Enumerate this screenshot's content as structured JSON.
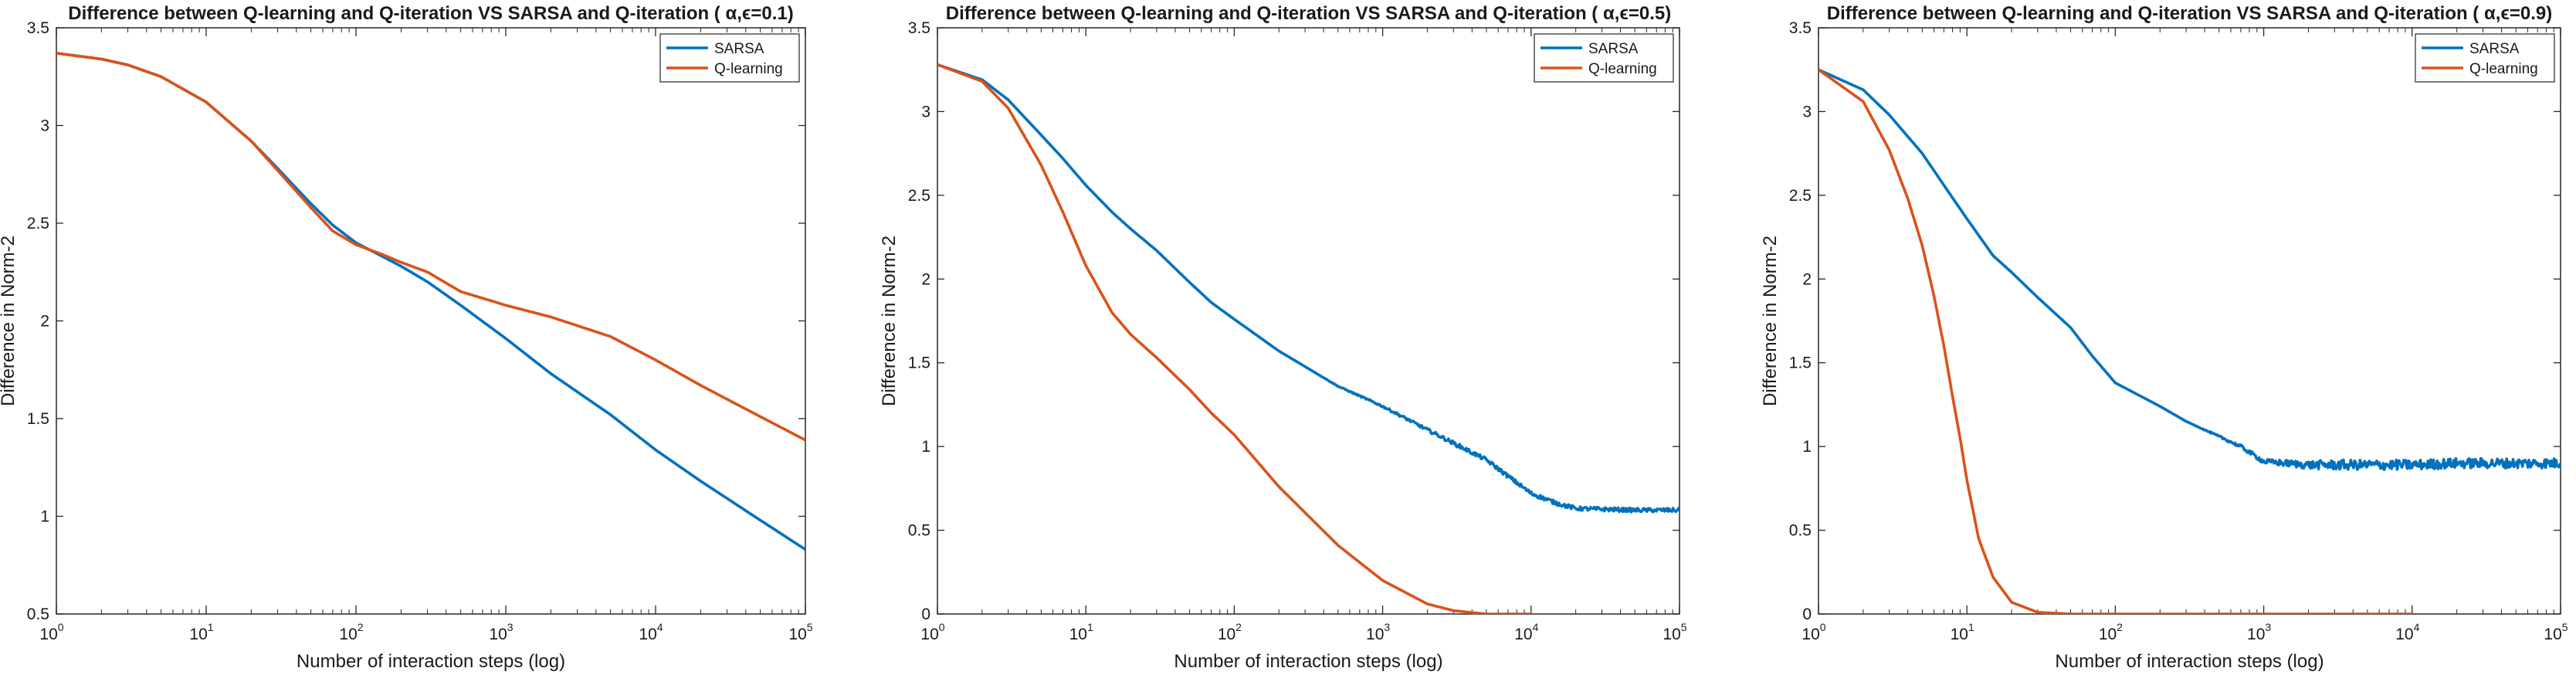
{
  "chart_data": [
    {
      "type": "line",
      "title": "Difference between Q-learning and Q-iteration VS SARSA and Q-iteration ( α,ϵ=0.1)",
      "xlabel": "Number of interaction steps (log)",
      "ylabel": "Difference in Norm-2",
      "xscale": "log",
      "xlim": [
        1,
        100000
      ],
      "ylim": [
        0.5,
        3.5
      ],
      "yticks": [
        "0.5",
        "1",
        "1.5",
        "2",
        "2.5",
        "3",
        "3.5"
      ],
      "xticks": [
        {
          "base": "10",
          "exp": "0"
        },
        {
          "base": "10",
          "exp": "1"
        },
        {
          "base": "10",
          "exp": "2"
        },
        {
          "base": "10",
          "exp": "3"
        },
        {
          "base": "10",
          "exp": "4"
        },
        {
          "base": "10",
          "exp": "5"
        }
      ],
      "legend_position": "top-right",
      "grid": false,
      "series": [
        {
          "name": "SARSA",
          "color": "#0072BD",
          "x": [
            1,
            2,
            3,
            5,
            10,
            20,
            30,
            50,
            70,
            100,
            150,
            200,
            300,
            500,
            1000,
            2000,
            5000,
            10000,
            20000,
            50000,
            100000
          ],
          "y": [
            3.37,
            3.34,
            3.31,
            3.25,
            3.12,
            2.92,
            2.78,
            2.6,
            2.49,
            2.4,
            2.33,
            2.28,
            2.2,
            2.08,
            1.91,
            1.73,
            1.52,
            1.34,
            1.18,
            0.98,
            0.83
          ],
          "noise": 0
        },
        {
          "name": "Q-learning",
          "color": "#D95319",
          "x": [
            1,
            2,
            3,
            5,
            10,
            20,
            30,
            50,
            70,
            100,
            150,
            200,
            300,
            500,
            1000,
            2000,
            5000,
            10000,
            20000,
            50000,
            100000
          ],
          "y": [
            3.37,
            3.34,
            3.31,
            3.25,
            3.12,
            2.92,
            2.77,
            2.58,
            2.46,
            2.39,
            2.34,
            2.3,
            2.25,
            2.15,
            2.08,
            2.02,
            1.92,
            1.8,
            1.67,
            1.51,
            1.39
          ],
          "noise": 0
        }
      ]
    },
    {
      "type": "line",
      "title": "Difference between Q-learning and Q-iteration VS SARSA and Q-iteration ( α,ϵ=0.5)",
      "xlabel": "Number of interaction steps (log)",
      "ylabel": "Difference in Norm-2",
      "xscale": "log",
      "xlim": [
        1,
        100000
      ],
      "ylim": [
        0,
        3.5
      ],
      "yticks": [
        "0",
        "0.5",
        "1",
        "1.5",
        "2",
        "2.5",
        "3",
        "3.5"
      ],
      "xticks": [
        {
          "base": "10",
          "exp": "0"
        },
        {
          "base": "10",
          "exp": "1"
        },
        {
          "base": "10",
          "exp": "2"
        },
        {
          "base": "10",
          "exp": "3"
        },
        {
          "base": "10",
          "exp": "4"
        },
        {
          "base": "10",
          "exp": "5"
        }
      ],
      "legend_position": "top-right",
      "grid": false,
      "series": [
        {
          "name": "SARSA",
          "color": "#0072BD",
          "x": [
            1,
            2,
            3,
            5,
            7,
            10,
            15,
            20,
            30,
            50,
            70,
            100,
            200,
            500,
            1000,
            2000,
            5000,
            10000,
            15000,
            20000,
            50000,
            100000
          ],
          "y": [
            3.28,
            3.19,
            3.07,
            2.86,
            2.72,
            2.56,
            2.4,
            2.3,
            2.17,
            1.98,
            1.86,
            1.76,
            1.57,
            1.36,
            1.24,
            1.1,
            0.92,
            0.72,
            0.66,
            0.63,
            0.62,
            0.62
          ],
          "noise": 0.012
        },
        {
          "name": "Q-learning",
          "color": "#D95319",
          "x": [
            1,
            2,
            3,
            5,
            7,
            10,
            15,
            20,
            30,
            50,
            70,
            100,
            200,
            500,
            1000,
            2000,
            3000,
            5000,
            7000,
            10000
          ],
          "y": [
            3.28,
            3.18,
            3.02,
            2.68,
            2.4,
            2.08,
            1.8,
            1.67,
            1.53,
            1.34,
            1.2,
            1.07,
            0.76,
            0.41,
            0.2,
            0.06,
            0.02,
            0.0,
            0.0,
            0.0
          ],
          "noise": 0
        }
      ]
    },
    {
      "type": "line",
      "title": "Difference between Q-learning and Q-iteration VS SARSA and Q-iteration ( α,ϵ=0.9)",
      "xlabel": "Number of interaction steps (log)",
      "ylabel": "Difference in Norm-2",
      "xscale": "log",
      "xlim": [
        1,
        100000
      ],
      "ylim": [
        0,
        3.5
      ],
      "yticks": [
        "0",
        "0.5",
        "1",
        "1.5",
        "2",
        "2.5",
        "3",
        "3.5"
      ],
      "xticks": [
        {
          "base": "10",
          "exp": "0"
        },
        {
          "base": "10",
          "exp": "1"
        },
        {
          "base": "10",
          "exp": "2"
        },
        {
          "base": "10",
          "exp": "3"
        },
        {
          "base": "10",
          "exp": "4"
        },
        {
          "base": "10",
          "exp": "5"
        }
      ],
      "legend_position": "top-right",
      "grid": false,
      "series": [
        {
          "name": "SARSA",
          "color": "#0072BD",
          "x": [
            1,
            2,
            3,
            5,
            7,
            10,
            15,
            20,
            30,
            50,
            70,
            100,
            200,
            300,
            500,
            700,
            1000,
            2000,
            5000,
            10000,
            20000,
            50000,
            100000
          ],
          "y": [
            3.25,
            3.13,
            2.98,
            2.75,
            2.56,
            2.36,
            2.14,
            2.04,
            1.89,
            1.71,
            1.54,
            1.38,
            1.24,
            1.15,
            1.06,
            1.0,
            0.91,
            0.89,
            0.89,
            0.89,
            0.9,
            0.9,
            0.9
          ],
          "noise": 0.03
        },
        {
          "name": "Q-learning",
          "color": "#D95319",
          "x": [
            1,
            2,
            3,
            4,
            5,
            6,
            7,
            8,
            9,
            10,
            12,
            15,
            20,
            30,
            50,
            100,
            1000,
            10000
          ],
          "y": [
            3.25,
            3.06,
            2.77,
            2.48,
            2.2,
            1.9,
            1.6,
            1.3,
            1.05,
            0.8,
            0.45,
            0.22,
            0.07,
            0.01,
            0.0,
            0.0,
            0.0,
            0.0
          ],
          "noise": 0
        }
      ]
    }
  ]
}
